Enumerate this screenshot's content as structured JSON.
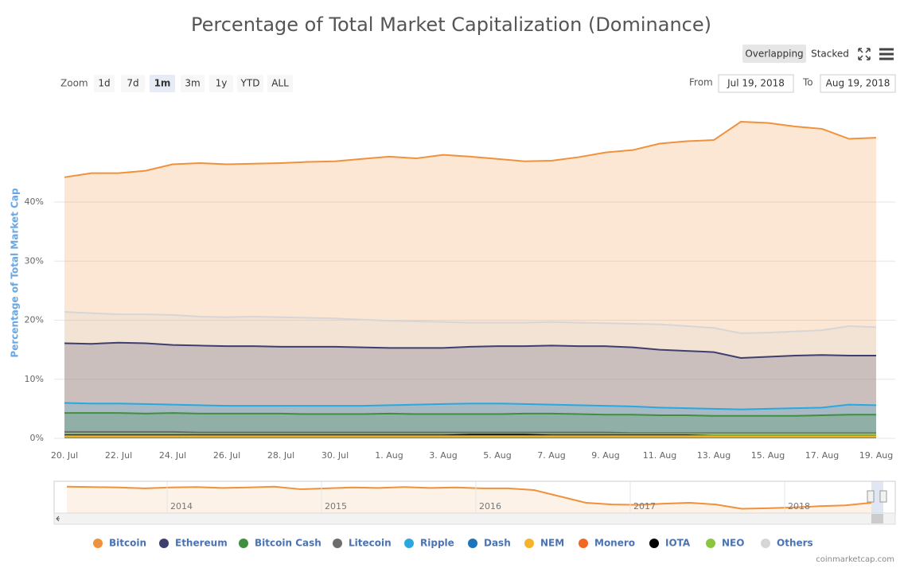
{
  "chart_data": {
    "type": "area",
    "title": "Percentage of Total Market Capitalization (Dominance)",
    "y_label": "Percentage of Total Market Cap",
    "categories": [
      "20. Jul",
      null,
      "22. Jul",
      null,
      "24. Jul",
      null,
      "26. Jul",
      null,
      "28. Jul",
      null,
      "30. Jul",
      null,
      "1. Aug",
      null,
      "3. Aug",
      null,
      "5. Aug",
      null,
      "7. Aug",
      null,
      "9. Aug",
      null,
      "11. Aug",
      null,
      "13. Aug",
      null,
      "15. Aug",
      null,
      "17. Aug",
      null,
      "19. Aug"
    ],
    "ylim": [
      0,
      55
    ],
    "yticks": [
      {
        "value": 0,
        "label": "0%"
      },
      {
        "value": 10,
        "label": "10%"
      },
      {
        "value": 20,
        "label": "20%"
      },
      {
        "value": 30,
        "label": "30%"
      },
      {
        "value": 40,
        "label": "40%"
      }
    ],
    "grid": true,
    "legend": "bottom",
    "series": [
      {
        "name": "Bitcoin",
        "color": "#f0913c",
        "values": [
          44.2,
          44.9,
          44.9,
          45.3,
          46.4,
          46.6,
          46.4,
          46.5,
          46.6,
          46.8,
          46.9,
          47.3,
          47.7,
          47.4,
          48.0,
          47.7,
          47.3,
          46.9,
          47.0,
          47.6,
          48.4,
          48.8,
          49.9,
          50.3,
          50.5,
          53.6,
          53.4,
          52.8,
          52.4,
          50.7,
          50.9
        ]
      },
      {
        "name": "Ethereum",
        "color": "#3e3f6e",
        "values": [
          16.1,
          16.0,
          16.2,
          16.1,
          15.8,
          15.7,
          15.6,
          15.6,
          15.5,
          15.5,
          15.5,
          15.4,
          15.3,
          15.3,
          15.3,
          15.5,
          15.6,
          15.6,
          15.7,
          15.6,
          15.6,
          15.4,
          15.0,
          14.8,
          14.6,
          13.6,
          13.8,
          14.0,
          14.1,
          14.0,
          14.0
        ]
      },
      {
        "name": "Bitcoin Cash",
        "color": "#3f8f3f",
        "values": [
          4.3,
          4.3,
          4.3,
          4.2,
          4.3,
          4.2,
          4.2,
          4.2,
          4.2,
          4.1,
          4.1,
          4.1,
          4.2,
          4.1,
          4.1,
          4.1,
          4.1,
          4.2,
          4.2,
          4.1,
          4.0,
          4.0,
          3.9,
          3.9,
          3.8,
          3.8,
          3.8,
          3.8,
          3.9,
          4.0,
          4.0
        ]
      },
      {
        "name": "Litecoin",
        "color": "#6d6d6d",
        "values": [
          1.1,
          1.1,
          1.1,
          1.1,
          1.1,
          1.0,
          1.0,
          1.0,
          1.0,
          1.0,
          1.0,
          1.0,
          1.0,
          1.0,
          1.0,
          1.0,
          1.0,
          1.0,
          1.0,
          1.0,
          1.0,
          0.9,
          0.9,
          0.9,
          0.9,
          0.9,
          0.9,
          0.9,
          0.9,
          0.9,
          0.9
        ]
      },
      {
        "name": "Ripple",
        "color": "#29a8e0",
        "values": [
          6.0,
          5.9,
          5.9,
          5.8,
          5.7,
          5.6,
          5.5,
          5.5,
          5.5,
          5.5,
          5.5,
          5.5,
          5.6,
          5.7,
          5.8,
          5.9,
          5.9,
          5.8,
          5.7,
          5.6,
          5.5,
          5.4,
          5.2,
          5.1,
          5.0,
          4.9,
          5.0,
          5.1,
          5.2,
          5.7,
          5.6
        ]
      },
      {
        "name": "Dash",
        "color": "#1c75bc",
        "values": [
          0.3,
          0.3,
          0.3,
          0.3,
          0.3,
          0.3,
          0.3,
          0.3,
          0.3,
          0.3,
          0.3,
          0.3,
          0.3,
          0.3,
          0.3,
          0.3,
          0.3,
          0.3,
          0.3,
          0.3,
          0.3,
          0.3,
          0.3,
          0.3,
          0.3,
          0.3,
          0.3,
          0.3,
          0.3,
          0.3,
          0.3
        ]
      },
      {
        "name": "NEM",
        "color": "#f5b42a",
        "values": [
          0.3,
          0.3,
          0.3,
          0.3,
          0.3,
          0.3,
          0.3,
          0.3,
          0.3,
          0.3,
          0.3,
          0.3,
          0.3,
          0.3,
          0.3,
          0.3,
          0.3,
          0.3,
          0.3,
          0.3,
          0.3,
          0.3,
          0.3,
          0.3,
          0.3,
          0.3,
          0.3,
          0.3,
          0.3,
          0.3,
          0.3
        ]
      },
      {
        "name": "Monero",
        "color": "#f26822",
        "values": [
          0.4,
          0.4,
          0.4,
          0.4,
          0.4,
          0.4,
          0.4,
          0.4,
          0.4,
          0.4,
          0.4,
          0.4,
          0.4,
          0.4,
          0.4,
          0.4,
          0.4,
          0.4,
          0.4,
          0.4,
          0.4,
          0.4,
          0.4,
          0.4,
          0.4,
          0.4,
          0.4,
          0.4,
          0.4,
          0.4,
          0.4
        ]
      },
      {
        "name": "IOTA",
        "color": "#000000",
        "values": [
          0.5,
          0.5,
          0.5,
          0.5,
          0.5,
          0.5,
          0.5,
          0.5,
          0.5,
          0.5,
          0.5,
          0.5,
          0.5,
          0.5,
          0.5,
          0.6,
          0.6,
          0.6,
          0.5,
          0.5,
          0.5,
          0.5,
          0.5,
          0.5,
          0.4,
          0.4,
          0.4,
          0.4,
          0.4,
          0.4,
          0.4
        ]
      },
      {
        "name": "NEO",
        "color": "#8cc63f",
        "values": [
          0.7,
          0.7,
          0.7,
          0.7,
          0.7,
          0.7,
          0.7,
          0.7,
          0.7,
          0.7,
          0.7,
          0.7,
          0.7,
          0.7,
          0.7,
          0.7,
          0.7,
          0.7,
          0.7,
          0.7,
          0.7,
          0.7,
          0.7,
          0.7,
          0.7,
          0.7,
          0.7,
          0.7,
          0.7,
          0.7,
          0.7
        ]
      },
      {
        "name": "Others",
        "color": "#d6d6d6",
        "values": [
          21.4,
          21.2,
          21.0,
          21.0,
          20.9,
          20.6,
          20.5,
          20.6,
          20.5,
          20.4,
          20.3,
          20.1,
          19.9,
          19.8,
          19.7,
          19.6,
          19.6,
          19.6,
          19.7,
          19.6,
          19.5,
          19.4,
          19.3,
          19.0,
          18.7,
          17.8,
          17.9,
          18.1,
          18.3,
          19.0,
          18.8
        ]
      }
    ],
    "navigator": {
      "categories": [
        "2014",
        "2015",
        "2016",
        "2017",
        "2018"
      ],
      "ylim": [
        35,
        95
      ],
      "values": [
        88,
        87,
        86,
        84,
        86,
        87,
        85,
        86,
        88,
        82,
        84,
        86,
        85,
        87,
        85,
        86,
        84,
        84,
        80,
        65,
        50,
        46,
        45,
        48,
        50,
        46,
        36,
        37,
        39,
        42,
        44,
        50
      ]
    }
  },
  "controls": {
    "zoom_label": "Zoom",
    "zoom_buttons": [
      "1d",
      "7d",
      "1m",
      "3m",
      "1y",
      "YTD",
      "ALL"
    ],
    "zoom_selected": "1m",
    "from_label": "From",
    "from_value": "Jul 19, 2018",
    "to_label": "To",
    "to_value": "Aug 19, 2018",
    "mode_buttons": [
      "Overlapping",
      "Stacked"
    ],
    "mode_selected": "Overlapping"
  },
  "credit": "coinmarketcap.com"
}
